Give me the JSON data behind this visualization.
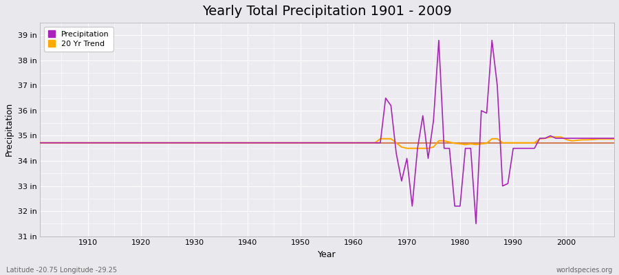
{
  "title": "Yearly Total Precipitation 1901 - 2009",
  "xlabel": "Year",
  "ylabel": "Precipitation",
  "background_color": "#e8e8ed",
  "plot_bg_color": "#ebebf0",
  "grid_color": "#ffffff",
  "title_fontsize": 14,
  "footer_left": "Latitude -20.75 Longitude -29.25",
  "footer_right": "worldspecies.org",
  "ylim": [
    31,
    39.5
  ],
  "xlim": [
    1901,
    2009
  ],
  "ytick_labels": [
    "31 in",
    "32 in",
    "33 in",
    "34 in",
    "35 in",
    "36 in",
    "37 in",
    "38 in",
    "39 in"
  ],
  "ytick_values": [
    31,
    32,
    33,
    34,
    35,
    36,
    37,
    38,
    39
  ],
  "xtick_values": [
    1910,
    1920,
    1930,
    1940,
    1950,
    1960,
    1970,
    1980,
    1990,
    2000
  ],
  "precipitation_color": "#aa22bb",
  "trend_color": "#ffaa00",
  "mean_color": "#cc6633",
  "legend_labels": [
    "Precipitation",
    "20 Yr Trend"
  ],
  "mean_value": 34.72,
  "years": [
    1901,
    1902,
    1903,
    1904,
    1905,
    1906,
    1907,
    1908,
    1909,
    1910,
    1911,
    1912,
    1913,
    1914,
    1915,
    1916,
    1917,
    1918,
    1919,
    1920,
    1921,
    1922,
    1923,
    1924,
    1925,
    1926,
    1927,
    1928,
    1929,
    1930,
    1931,
    1932,
    1933,
    1934,
    1935,
    1936,
    1937,
    1938,
    1939,
    1940,
    1941,
    1942,
    1943,
    1944,
    1945,
    1946,
    1947,
    1948,
    1949,
    1950,
    1951,
    1952,
    1953,
    1954,
    1955,
    1956,
    1957,
    1958,
    1959,
    1960,
    1961,
    1962,
    1963,
    1964,
    1965,
    1966,
    1967,
    1968,
    1969,
    1970,
    1971,
    1972,
    1973,
    1974,
    1975,
    1976,
    1977,
    1978,
    1979,
    1980,
    1981,
    1982,
    1983,
    1984,
    1985,
    1986,
    1987,
    1988,
    1989,
    1990,
    1991,
    1992,
    1993,
    1994,
    1995,
    1996,
    1997,
    1998,
    1999,
    2000,
    2001,
    2002,
    2003,
    2004,
    2005,
    2006,
    2007,
    2008,
    2009
  ],
  "precip_values": [
    34.72,
    34.72,
    34.72,
    34.72,
    34.72,
    34.72,
    34.72,
    34.72,
    34.72,
    34.72,
    34.72,
    34.72,
    34.72,
    34.72,
    34.72,
    34.72,
    34.72,
    34.72,
    34.72,
    34.72,
    34.72,
    34.72,
    34.72,
    34.72,
    34.72,
    34.72,
    34.72,
    34.72,
    34.72,
    34.72,
    34.72,
    34.72,
    34.72,
    34.72,
    34.72,
    34.72,
    34.72,
    34.72,
    34.72,
    34.72,
    34.72,
    34.72,
    34.72,
    34.72,
    34.72,
    34.72,
    34.72,
    34.72,
    34.72,
    34.72,
    34.72,
    34.72,
    34.72,
    34.72,
    34.72,
    34.72,
    34.72,
    34.72,
    34.72,
    34.72,
    34.72,
    34.72,
    34.72,
    34.72,
    34.72,
    36.5,
    36.2,
    34.3,
    33.2,
    34.1,
    32.2,
    34.5,
    35.8,
    34.1,
    35.6,
    38.8,
    34.5,
    34.5,
    32.2,
    32.2,
    34.5,
    34.5,
    31.5,
    36.0,
    35.9,
    38.8,
    37.0,
    33.0,
    33.1,
    34.5,
    34.5,
    34.5,
    34.5,
    34.5,
    34.9,
    34.9,
    35.0,
    34.9,
    34.9,
    34.9,
    34.9,
    34.9,
    34.9,
    34.9,
    34.9,
    34.9,
    34.9,
    34.9,
    34.9
  ],
  "trend_values": [
    34.72,
    34.72,
    34.72,
    34.72,
    34.72,
    34.72,
    34.72,
    34.72,
    34.72,
    34.72,
    34.72,
    34.72,
    34.72,
    34.72,
    34.72,
    34.72,
    34.72,
    34.72,
    34.72,
    34.72,
    34.72,
    34.72,
    34.72,
    34.72,
    34.72,
    34.72,
    34.72,
    34.72,
    34.72,
    34.72,
    34.72,
    34.72,
    34.72,
    34.72,
    34.72,
    34.72,
    34.72,
    34.72,
    34.72,
    34.72,
    34.72,
    34.72,
    34.72,
    34.72,
    34.72,
    34.72,
    34.72,
    34.72,
    34.72,
    34.72,
    34.72,
    34.72,
    34.72,
    34.72,
    34.72,
    34.72,
    34.72,
    34.72,
    34.72,
    34.72,
    34.72,
    34.72,
    34.72,
    34.72,
    34.88,
    34.88,
    34.88,
    34.72,
    34.55,
    34.5,
    34.5,
    34.5,
    34.5,
    34.5,
    34.55,
    34.8,
    34.8,
    34.75,
    34.7,
    34.68,
    34.65,
    34.68,
    34.65,
    34.68,
    34.7,
    34.88,
    34.88,
    34.72,
    34.72,
    34.72,
    34.72,
    34.72,
    34.72,
    34.72,
    34.88,
    34.9,
    34.95,
    34.95,
    34.95,
    34.85,
    34.8,
    34.82,
    34.84,
    34.84,
    34.85,
    34.87,
    34.87,
    34.87,
    34.87
  ]
}
